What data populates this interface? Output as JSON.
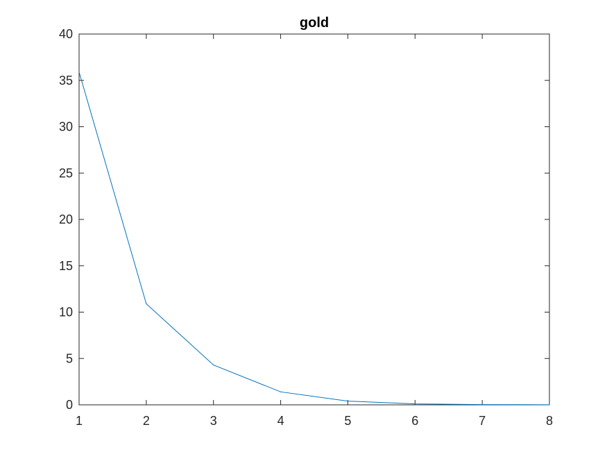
{
  "chart_data": {
    "type": "line",
    "title": "gold",
    "xlabel": "",
    "ylabel": "",
    "x": [
      1,
      2,
      3,
      4,
      5,
      6,
      7,
      8
    ],
    "series": [
      {
        "values": [
          35.9,
          10.9,
          4.3,
          1.4,
          0.4,
          0.1,
          0.03,
          0.01
        ]
      }
    ],
    "xlim": [
      1,
      8
    ],
    "ylim": [
      0,
      40
    ],
    "xticks": [
      1,
      2,
      3,
      4,
      5,
      6,
      7,
      8
    ],
    "yticks": [
      0,
      5,
      10,
      15,
      20,
      25,
      30,
      35,
      40
    ],
    "grid": false,
    "box": true,
    "colors": {
      "line": "#0072BD",
      "axes": "#262626",
      "background": "#ffffff"
    }
  }
}
